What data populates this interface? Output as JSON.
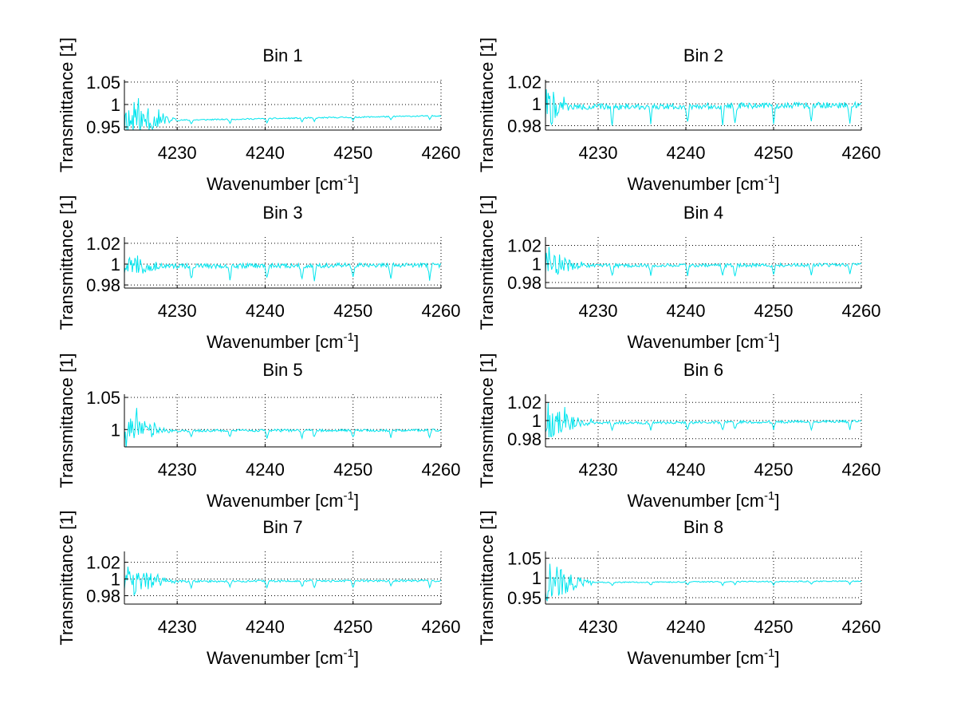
{
  "figure": {
    "trace_color": "#00e5ee",
    "axis_color": "#000000",
    "grid_style": "dotted"
  },
  "chart_data": [
    {
      "type": "line",
      "title": "Bin 1",
      "xlabel": "Wavenumber [cm-1]",
      "xlabel_main": "Wavenumber [cm",
      "xlabel_sup": "-1",
      "xlabel_end": "]",
      "ylabel": "Transmittance [1]",
      "xlim": [
        4224,
        4260
      ],
      "ylim": [
        0.943,
        1.055
      ],
      "xticks": [
        4230,
        4240,
        4250,
        4260
      ],
      "xtick_labels": [
        "4230",
        "4240",
        "4250",
        "4260"
      ],
      "yticks": [
        0.95,
        1,
        1.05
      ],
      "ytick_labels": [
        "0.95",
        "1",
        "1.05"
      ],
      "grid": true,
      "series": [
        {
          "name": "Bin 1",
          "baseline_start": 0.963,
          "baseline_end": 0.975,
          "noisy_until": 4230,
          "noise_amp": 0.045,
          "dip_depth": 0.008,
          "seed": 11
        }
      ]
    },
    {
      "type": "line",
      "title": "Bin 2",
      "xlabel": "Wavenumber [cm-1]",
      "xlabel_main": "Wavenumber [cm",
      "xlabel_sup": "-1",
      "xlabel_end": "]",
      "ylabel": "Transmittance [1]",
      "xlim": [
        4224,
        4260
      ],
      "ylim": [
        0.976,
        1.022
      ],
      "xticks": [
        4230,
        4240,
        4250,
        4260
      ],
      "xtick_labels": [
        "4230",
        "4240",
        "4250",
        "4260"
      ],
      "yticks": [
        0.98,
        1,
        1.02
      ],
      "ytick_labels": [
        "0.98",
        "1",
        "1.02"
      ],
      "grid": true,
      "series": [
        {
          "name": "Bin 2",
          "baseline_start": 0.997,
          "baseline_end": 0.999,
          "noisy_until": 4227,
          "noise_amp": 0.022,
          "dip_depth": 0.015,
          "seed": 22
        }
      ]
    },
    {
      "type": "line",
      "title": "Bin 3",
      "xlabel": "Wavenumber [cm-1]",
      "xlabel_main": "Wavenumber [cm",
      "xlabel_sup": "-1",
      "xlabel_end": "]",
      "ylabel": "Transmittance [1]",
      "xlim": [
        4224,
        4260
      ],
      "ylim": [
        0.977,
        1.026
      ],
      "xticks": [
        4230,
        4240,
        4250,
        4260
      ],
      "xtick_labels": [
        "4230",
        "4240",
        "4250",
        "4260"
      ],
      "yticks": [
        0.98,
        1,
        1.02
      ],
      "ytick_labels": [
        "0.98",
        "1",
        "1.02"
      ],
      "grid": true,
      "series": [
        {
          "name": "Bin 3",
          "baseline_start": 0.998,
          "baseline_end": 0.999,
          "noisy_until": 4229.5,
          "noise_amp": 0.013,
          "dip_depth": 0.013,
          "seed": 33
        }
      ]
    },
    {
      "type": "line",
      "title": "Bin 4",
      "xlabel": "Wavenumber [cm-1]",
      "xlabel_main": "Wavenumber [cm",
      "xlabel_sup": "-1",
      "xlabel_end": "]",
      "ylabel": "Transmittance [1]",
      "xlim": [
        4224,
        4260
      ],
      "ylim": [
        0.974,
        1.029
      ],
      "xticks": [
        4230,
        4240,
        4250,
        4260
      ],
      "xtick_labels": [
        "4230",
        "4240",
        "4250",
        "4260"
      ],
      "yticks": [
        0.98,
        1,
        1.02
      ],
      "ytick_labels": [
        "0.98",
        "1",
        "1.02"
      ],
      "grid": true,
      "series": [
        {
          "name": "Bin 4",
          "baseline_start": 0.998,
          "baseline_end": 0.999,
          "noisy_until": 4229,
          "noise_amp": 0.016,
          "dip_depth": 0.011,
          "seed": 44
        }
      ]
    },
    {
      "type": "line",
      "title": "Bin 5",
      "xlabel": "Wavenumber [cm-1]",
      "xlabel_main": "Wavenumber [cm",
      "xlabel_sup": "-1",
      "xlabel_end": "]",
      "ylabel": "Transmittance [1]",
      "xlim": [
        4224,
        4260
      ],
      "ylim": [
        0.973,
        1.055
      ],
      "xticks": [
        4230,
        4240,
        4250,
        4260
      ],
      "xtick_labels": [
        "4230",
        "4240",
        "4250",
        "4260"
      ],
      "yticks": [
        1,
        1.05
      ],
      "ytick_labels": [
        "1",
        "1.05"
      ],
      "grid": true,
      "series": [
        {
          "name": "Bin 5",
          "baseline_start": 0.998,
          "baseline_end": 0.999,
          "noisy_until": 4229.5,
          "noise_amp": 0.03,
          "dip_depth": 0.011,
          "seed": 55
        }
      ]
    },
    {
      "type": "line",
      "title": "Bin 6",
      "xlabel": "Wavenumber [cm-1]",
      "xlabel_main": "Wavenumber [cm",
      "xlabel_sup": "-1",
      "xlabel_end": "]",
      "ylabel": "Transmittance [1]",
      "xlim": [
        4224,
        4260
      ],
      "ylim": [
        0.971,
        1.029
      ],
      "xticks": [
        4230,
        4240,
        4250,
        4260
      ],
      "xtick_labels": [
        "4230",
        "4240",
        "4250",
        "4260"
      ],
      "yticks": [
        0.98,
        1,
        1.02
      ],
      "ytick_labels": [
        "0.98",
        "1",
        "1.02"
      ],
      "grid": true,
      "series": [
        {
          "name": "Bin 6",
          "baseline_start": 0.997,
          "baseline_end": 0.999,
          "noisy_until": 4229.5,
          "noise_amp": 0.02,
          "dip_depth": 0.008,
          "seed": 66
        }
      ]
    },
    {
      "type": "line",
      "title": "Bin 7",
      "xlabel": "Wavenumber [cm-1]",
      "xlabel_main": "Wavenumber [cm",
      "xlabel_sup": "-1",
      "xlabel_end": "]",
      "ylabel": "Transmittance [1]",
      "xlim": [
        4224,
        4260
      ],
      "ylim": [
        0.97,
        1.033
      ],
      "xticks": [
        4230,
        4240,
        4250,
        4260
      ],
      "xtick_labels": [
        "4230",
        "4240",
        "4250",
        "4260"
      ],
      "yticks": [
        0.98,
        1,
        1.02
      ],
      "ytick_labels": [
        "0.98",
        "1",
        "1.02"
      ],
      "grid": true,
      "series": [
        {
          "name": "Bin 7",
          "baseline_start": 0.997,
          "baseline_end": 0.998,
          "noisy_until": 4230,
          "noise_amp": 0.02,
          "dip_depth": 0.007,
          "seed": 77
        }
      ]
    },
    {
      "type": "line",
      "title": "Bin 8",
      "xlabel": "Wavenumber [cm-1]",
      "xlabel_main": "Wavenumber [cm",
      "xlabel_sup": "-1",
      "xlabel_end": "]",
      "ylabel": "Transmittance [1]",
      "xlim": [
        4224,
        4260
      ],
      "ylim": [
        0.934,
        1.067
      ],
      "xticks": [
        4230,
        4240,
        4250,
        4260
      ],
      "xtick_labels": [
        "4230",
        "4240",
        "4250",
        "4260"
      ],
      "yticks": [
        0.95,
        1,
        1.05
      ],
      "ytick_labels": [
        "0.95",
        "1",
        "1.05"
      ],
      "grid": true,
      "series": [
        {
          "name": "Bin 8",
          "baseline_start": 0.988,
          "baseline_end": 0.992,
          "noisy_until": 4229.5,
          "noise_amp": 0.05,
          "dip_depth": 0.008,
          "seed": 88
        }
      ]
    }
  ],
  "absorption_lines_cm-1": [
    4231.6,
    4236.0,
    4240.2,
    4244.2,
    4245.6,
    4250.0,
    4254.3,
    4258.7
  ]
}
